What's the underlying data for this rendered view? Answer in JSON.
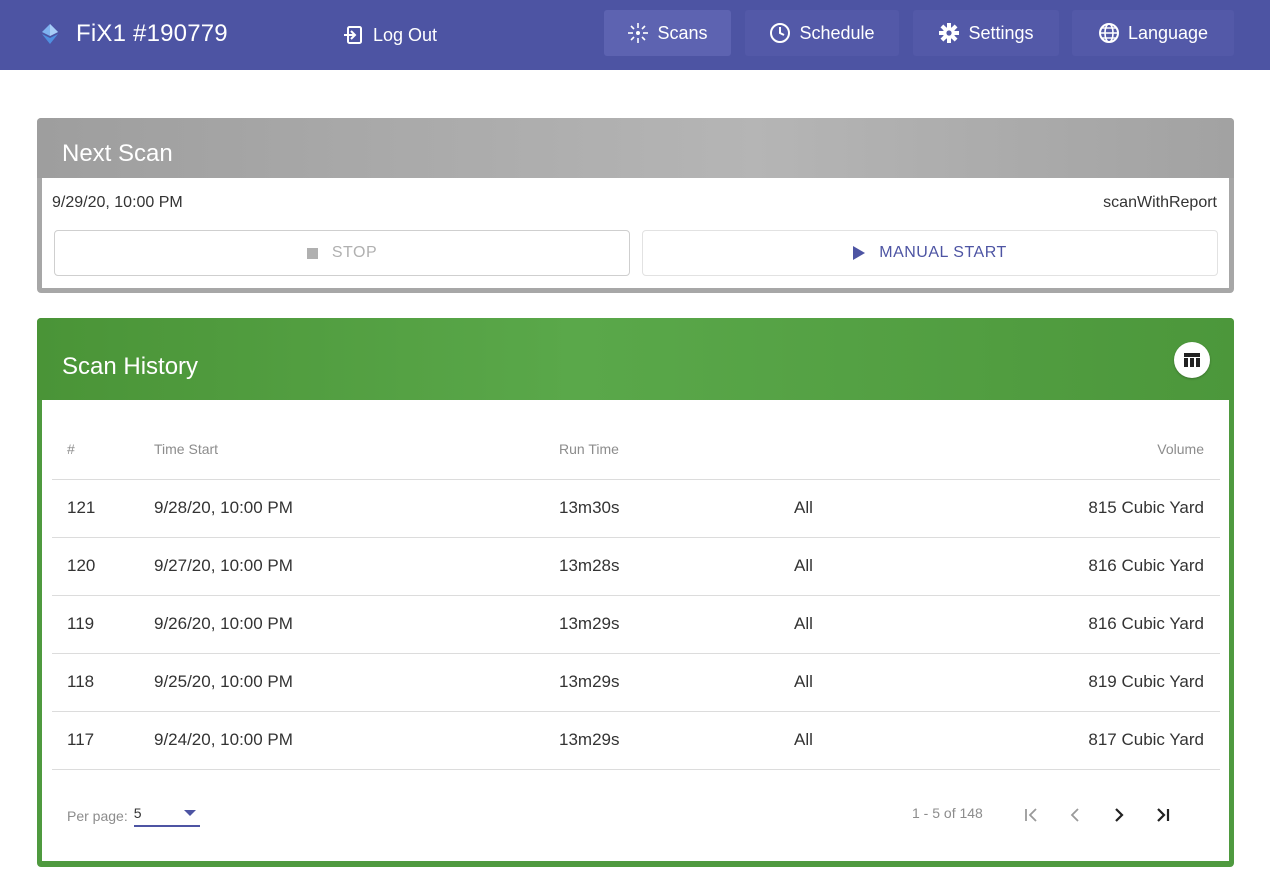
{
  "header": {
    "title": "FiX1 #190779",
    "logout_label": "Log Out",
    "nav": {
      "scans": "Scans",
      "schedule": "Schedule",
      "settings": "Settings",
      "language": "Language"
    }
  },
  "next_scan": {
    "title": "Next Scan",
    "datetime": "9/29/20, 10:00 PM",
    "type": "scanWithReport",
    "stop_label": "STOP",
    "start_label": "MANUAL START"
  },
  "history": {
    "title": "Scan History",
    "columns": {
      "num": "#",
      "time": "Time Start",
      "run": "Run Time",
      "target": "",
      "volume": "Volume"
    },
    "rows": [
      {
        "num": "121",
        "time": "9/28/20, 10:00 PM",
        "run": "13m30s",
        "target": "All",
        "volume": "815 Cubic Yard"
      },
      {
        "num": "120",
        "time": "9/27/20, 10:00 PM",
        "run": "13m28s",
        "target": "All",
        "volume": "816 Cubic Yard"
      },
      {
        "num": "119",
        "time": "9/26/20, 10:00 PM",
        "run": "13m29s",
        "target": "All",
        "volume": "816 Cubic Yard"
      },
      {
        "num": "118",
        "time": "9/25/20, 10:00 PM",
        "run": "13m29s",
        "target": "All",
        "volume": "819 Cubic Yard"
      },
      {
        "num": "117",
        "time": "9/24/20, 10:00 PM",
        "run": "13m29s",
        "target": "All",
        "volume": "817 Cubic Yard"
      }
    ],
    "per_page_label": "Per page:",
    "per_page_value": "5",
    "range_text": "1 - 5 of 148"
  },
  "colors": {
    "header_bg": "#4d54a3",
    "next_scan_header": "#a7a7a7",
    "history_header": "#4f9a3f",
    "accent": "#4d54a3"
  },
  "icons": [
    "app-logo-icon",
    "logout-icon",
    "scans-icon",
    "clock-icon",
    "gear-icon",
    "globe-icon",
    "stop-icon",
    "play-icon",
    "table-columns-icon",
    "dropdown-caret-icon",
    "first-page-icon",
    "prev-page-icon",
    "next-page-icon",
    "last-page-icon"
  ]
}
